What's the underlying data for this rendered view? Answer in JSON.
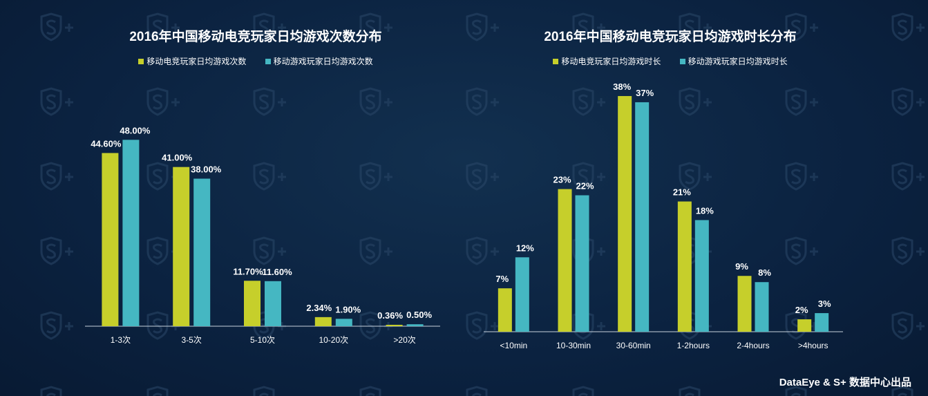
{
  "colors": {
    "series_a": "#c6cf2b",
    "series_b": "#45b7c2",
    "text": "#ffffff",
    "axis": "#c8d2dc"
  },
  "footer": {
    "credit": "DataEye & S+ 数据中心出品"
  },
  "chart_data": [
    {
      "type": "bar",
      "title": "2016年中国移动电竞玩家日均游戏次数分布",
      "categories": [
        "1-3次",
        "3-5次",
        "5-10次",
        "10-20次",
        ">20次"
      ],
      "series": [
        {
          "name": "移动电竞玩家日均游戏次数",
          "values": [
            44.6,
            41.0,
            11.7,
            2.34,
            0.36
          ],
          "labels": [
            "44.60%",
            "41.00%",
            "11.70%",
            "2.34%",
            "0.36%"
          ]
        },
        {
          "name": "移动游戏玩家日均游戏次数",
          "values": [
            48.0,
            38.0,
            11.6,
            1.9,
            0.5
          ],
          "labels": [
            "48.00%",
            "38.00%",
            "11.60%",
            "1.90%",
            "0.50%"
          ]
        }
      ],
      "ylim": [
        0,
        55
      ],
      "grid": false,
      "legend_position": "top"
    },
    {
      "type": "bar",
      "title": "2016年中国移动电竞玩家日均游戏时长分布",
      "categories": [
        "<10min",
        "10-30min",
        "30-60min",
        "1-2hours",
        "2-4hours",
        ">4hours"
      ],
      "series": [
        {
          "name": "移动电竞玩家日均游戏时长",
          "values": [
            7,
            23,
            38,
            21,
            9,
            2
          ],
          "labels": [
            "7%",
            "23%",
            "38%",
            "21%",
            "9%",
            "2%"
          ]
        },
        {
          "name": "移动游戏玩家日均游戏时长",
          "values": [
            12,
            22,
            37,
            18,
            8,
            3
          ],
          "labels": [
            "12%",
            "22%",
            "37%",
            "18%",
            "8%",
            "3%"
          ]
        }
      ],
      "ylim": [
        0,
        39
      ],
      "grid": false,
      "legend_position": "top"
    }
  ]
}
